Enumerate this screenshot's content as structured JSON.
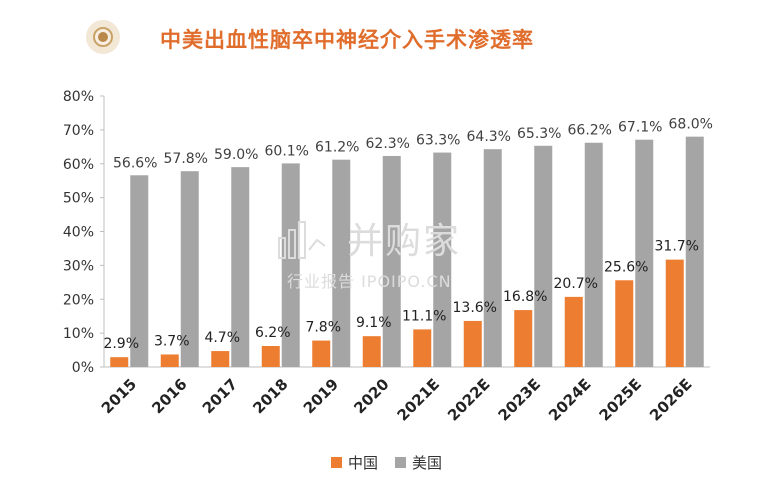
{
  "header": {
    "title": "中美出血性脑卒中神经介入手术渗透率"
  },
  "watermark": {
    "main": "并购家",
    "sub": "行业报告 IPOIPO.CN"
  },
  "chart_data": {
    "type": "bar",
    "categories": [
      "2015",
      "2016",
      "2017",
      "2018",
      "2019",
      "2020",
      "2021E",
      "2022E",
      "2023E",
      "2024E",
      "2025E",
      "2026E"
    ],
    "series": [
      {
        "name": "中国",
        "color": "#ed7d31",
        "values": [
          2.9,
          3.7,
          4.7,
          6.2,
          7.8,
          9.1,
          11.1,
          13.6,
          16.8,
          20.7,
          25.6,
          31.7
        ],
        "labels": [
          "2.9%",
          "3.7%",
          "4.7%",
          "6.2%",
          "7.8%",
          "9.1%",
          "11.1%",
          "13.6%",
          "16.8%",
          "20.7%",
          "25.6%",
          "31.7%"
        ]
      },
      {
        "name": "美国",
        "color": "#a5a5a5",
        "values": [
          56.6,
          57.8,
          59.0,
          60.1,
          61.2,
          62.3,
          63.3,
          64.3,
          65.3,
          66.2,
          67.1,
          68.0
        ],
        "labels": [
          "56.6%",
          "57.8%",
          "59.0%",
          "60.1%",
          "61.2%",
          "62.3%",
          "63.3%",
          "64.3%",
          "65.3%",
          "66.2%",
          "67.1%",
          "68.0%"
        ]
      }
    ],
    "ylim": [
      0,
      80
    ],
    "yticks": [
      "0%",
      "10%",
      "20%",
      "30%",
      "40%",
      "50%",
      "60%",
      "70%",
      "80%"
    ],
    "grid": false,
    "legend_position": "bottom"
  }
}
